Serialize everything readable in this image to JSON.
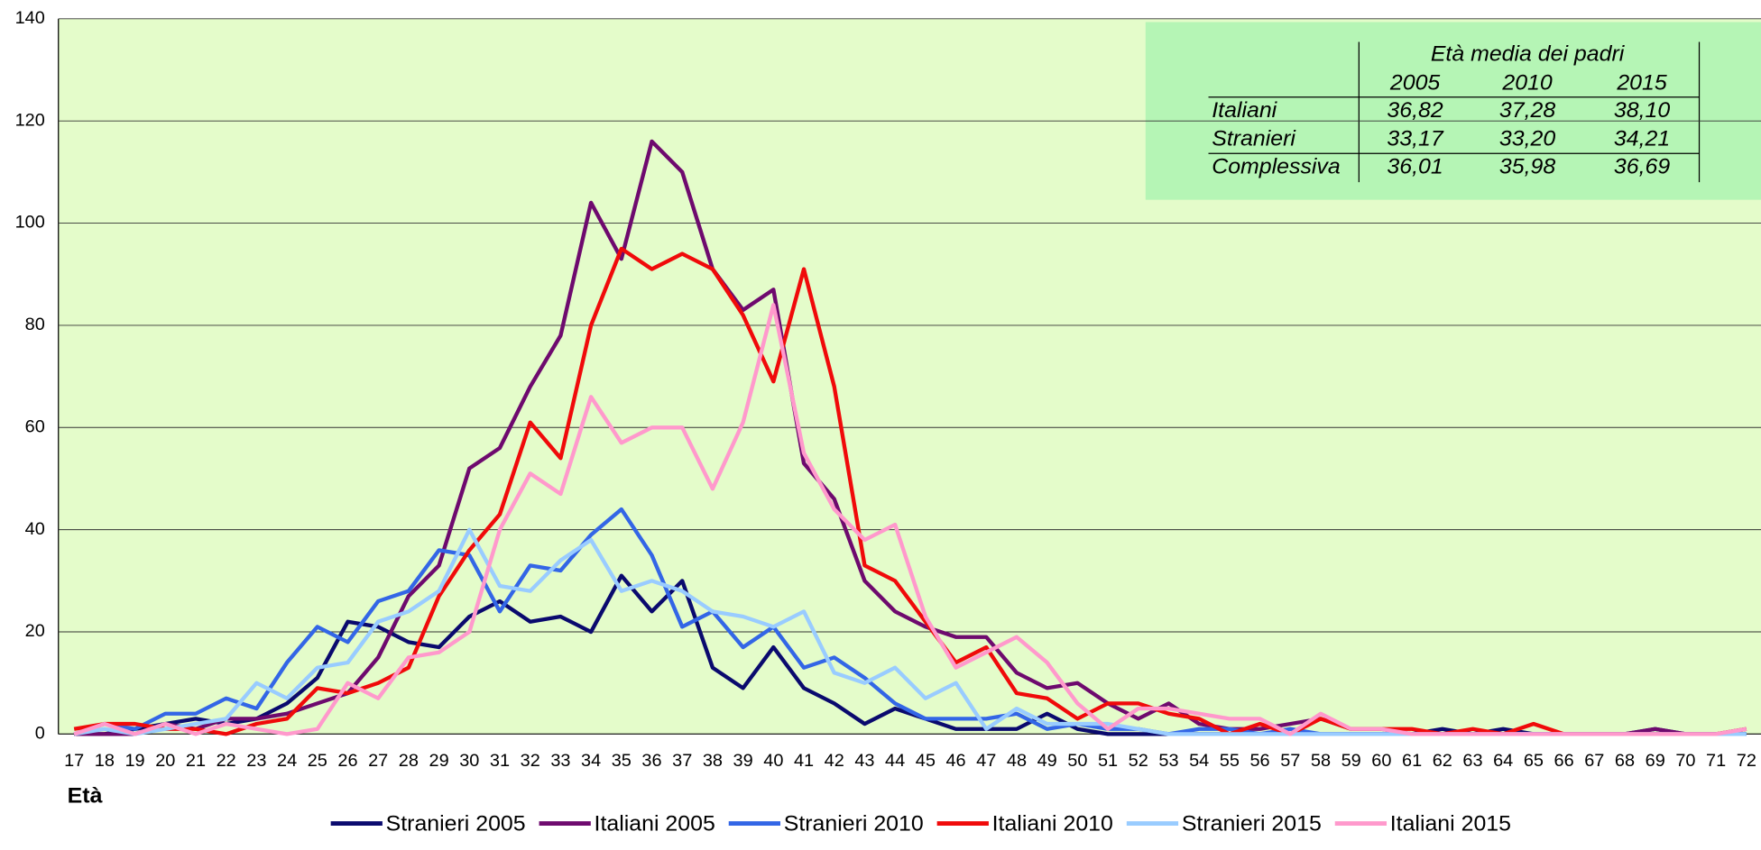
{
  "chart_data": {
    "type": "line",
    "x_label": "Età",
    "categories": [
      17,
      18,
      19,
      20,
      21,
      22,
      23,
      24,
      25,
      26,
      27,
      28,
      29,
      30,
      31,
      32,
      33,
      34,
      35,
      36,
      37,
      38,
      39,
      40,
      41,
      42,
      43,
      44,
      45,
      46,
      47,
      48,
      49,
      50,
      51,
      52,
      53,
      54,
      55,
      56,
      57,
      58,
      59,
      60,
      61,
      62,
      63,
      64,
      65,
      66,
      67,
      68,
      69,
      70,
      71,
      72
    ],
    "ylim": [
      0,
      140
    ],
    "yticks": [
      0,
      20,
      40,
      60,
      80,
      100,
      120,
      140
    ],
    "grid": true,
    "legend": "bottom",
    "series": [
      {
        "name": "Stranieri 2005",
        "color": "#0a0a6e",
        "values": [
          0,
          0,
          1,
          2,
          3,
          2,
          3,
          6,
          11,
          22,
          21,
          18,
          17,
          23,
          26,
          22,
          23,
          20,
          31,
          24,
          30,
          13,
          9,
          17,
          9,
          6,
          2,
          5,
          3,
          1,
          1,
          1,
          4,
          1,
          0,
          0,
          0,
          0,
          0,
          0,
          0,
          0,
          0,
          0,
          0,
          1,
          0,
          1,
          0,
          0,
          0,
          0,
          1,
          0,
          0,
          0
        ]
      },
      {
        "name": "Italiani 2005",
        "color": "#6e0a6e",
        "values": [
          0,
          0,
          0,
          2,
          1,
          3,
          3,
          4,
          6,
          8,
          15,
          27,
          33,
          52,
          56,
          68,
          78,
          104,
          93,
          116,
          110,
          91,
          83,
          87,
          53,
          46,
          30,
          24,
          21,
          19,
          19,
          12,
          9,
          10,
          6,
          3,
          6,
          2,
          1,
          1,
          2,
          3,
          1,
          1,
          0,
          0,
          0,
          0,
          0,
          0,
          0,
          0,
          1,
          0,
          0,
          1
        ]
      },
      {
        "name": "Stranieri 2010",
        "color": "#3366e6",
        "values": [
          0,
          2,
          1,
          4,
          4,
          7,
          5,
          14,
          21,
          18,
          26,
          28,
          36,
          35,
          24,
          33,
          32,
          39,
          44,
          35,
          21,
          24,
          17,
          21,
          13,
          15,
          11,
          6,
          3,
          3,
          3,
          4,
          1,
          2,
          1,
          1,
          0,
          1,
          1,
          0,
          1,
          0,
          0,
          0,
          0,
          0,
          0,
          0,
          0,
          0,
          0,
          0,
          0,
          0,
          0,
          0
        ]
      },
      {
        "name": "Italiani 2010",
        "color": "#f00a0a",
        "values": [
          1,
          2,
          2,
          1,
          1,
          0,
          2,
          3,
          9,
          8,
          10,
          13,
          27,
          36,
          43,
          61,
          54,
          80,
          95,
          91,
          94,
          91,
          82,
          69,
          91,
          68,
          33,
          30,
          22,
          14,
          17,
          8,
          7,
          3,
          6,
          6,
          4,
          3,
          0,
          2,
          0,
          3,
          1,
          1,
          1,
          0,
          1,
          0,
          2,
          0,
          0,
          0,
          0,
          0,
          0,
          1
        ]
      },
      {
        "name": "Stranieri 2015",
        "color": "#99ccff",
        "values": [
          0,
          1,
          0,
          1,
          2,
          3,
          10,
          7,
          13,
          14,
          22,
          24,
          28,
          40,
          29,
          28,
          34,
          38,
          28,
          30,
          28,
          24,
          23,
          21,
          24,
          12,
          10,
          13,
          7,
          10,
          1,
          5,
          2,
          2,
          2,
          1,
          0,
          0,
          0,
          0,
          0,
          0,
          0,
          0,
          0,
          0,
          0,
          0,
          0,
          0,
          0,
          0,
          0,
          0,
          0,
          0
        ]
      },
      {
        "name": "Italiani 2015",
        "color": "#ff99cc",
        "values": [
          0,
          2,
          0,
          2,
          0,
          2,
          1,
          0,
          1,
          10,
          7,
          15,
          16,
          20,
          40,
          51,
          47,
          66,
          57,
          60,
          60,
          48,
          61,
          84,
          55,
          44,
          38,
          41,
          23,
          13,
          16,
          19,
          14,
          6,
          1,
          5,
          5,
          4,
          3,
          3,
          0,
          4,
          1,
          1,
          0,
          0,
          0,
          0,
          0,
          0,
          0,
          0,
          0,
          0,
          0,
          1
        ]
      }
    ],
    "table": {
      "title": "Età media dei padri",
      "columns": [
        "2005",
        "2010",
        "2015"
      ],
      "rows": [
        {
          "label": "Italiani",
          "values": [
            "36,82",
            "37,28",
            "38,10"
          ]
        },
        {
          "label": "Stranieri",
          "values": [
            "33,17",
            "33,20",
            "34,21"
          ]
        },
        {
          "label": "Complessiva",
          "values": [
            "36,01",
            "35,98",
            "36,69"
          ]
        }
      ]
    }
  }
}
